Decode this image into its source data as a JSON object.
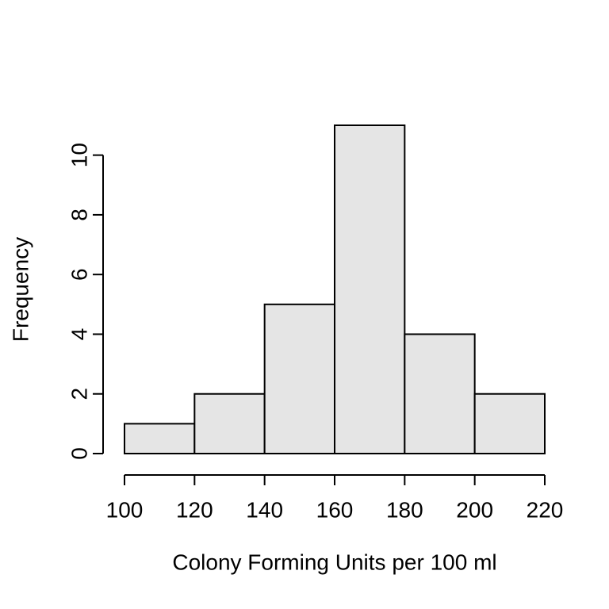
{
  "chart_data": {
    "type": "bar",
    "title": "",
    "xlabel": "Colony Forming Units per 100 ml",
    "ylabel": "Frequency",
    "bins": [
      {
        "start": 100,
        "end": 120,
        "count": 1
      },
      {
        "start": 120,
        "end": 140,
        "count": 2
      },
      {
        "start": 140,
        "end": 160,
        "count": 5
      },
      {
        "start": 160,
        "end": 180,
        "count": 11
      },
      {
        "start": 180,
        "end": 200,
        "count": 4
      },
      {
        "start": 200,
        "end": 220,
        "count": 2
      }
    ],
    "xticks": [
      100,
      120,
      140,
      160,
      180,
      200,
      220
    ],
    "yticks": [
      0,
      2,
      4,
      6,
      8,
      10
    ],
    "xlim": [
      100,
      220
    ],
    "ylim": [
      0,
      11
    ],
    "grid": false,
    "legend": "none",
    "colors": {
      "bar_fill": "#e5e5e5",
      "bar_stroke": "#000000"
    }
  }
}
